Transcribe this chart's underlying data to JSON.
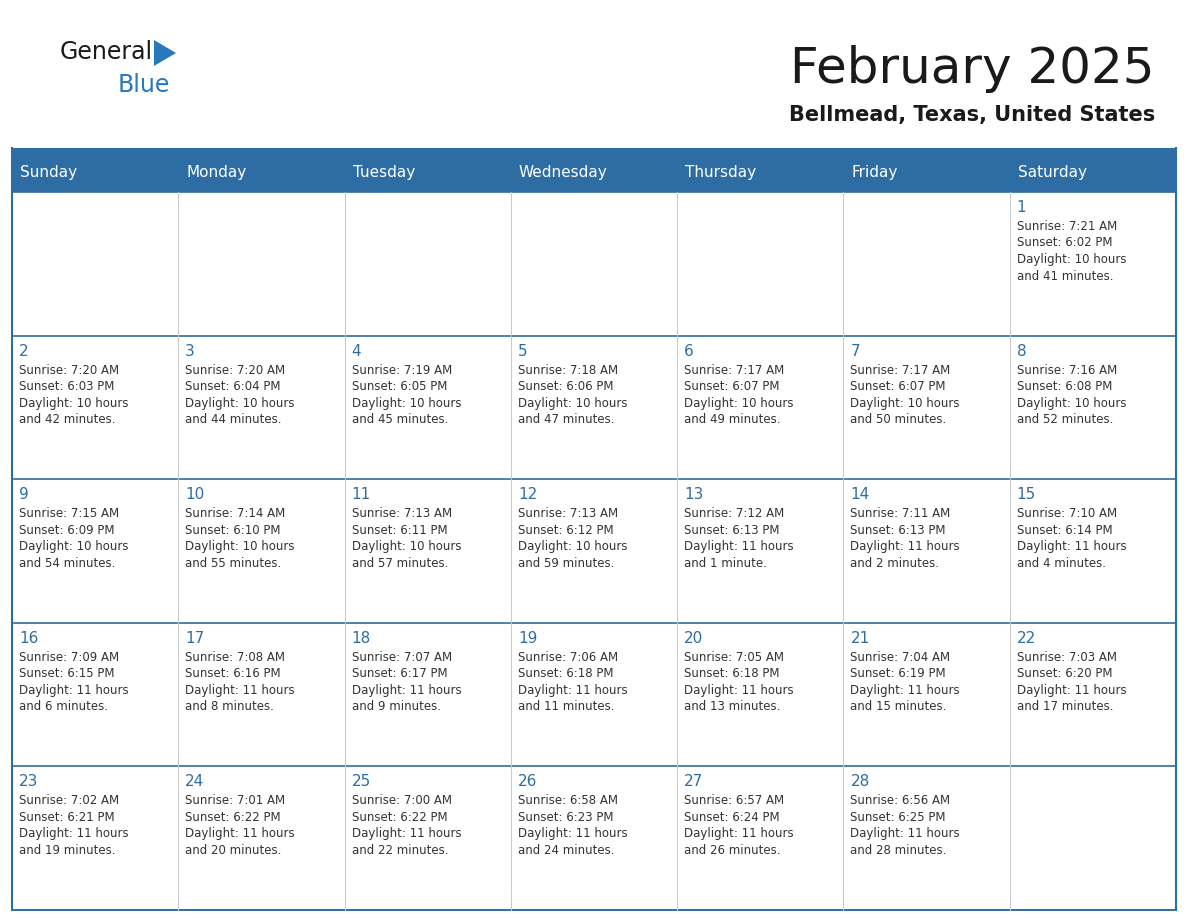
{
  "title": "February 2025",
  "subtitle": "Bellmead, Texas, United States",
  "days_of_week": [
    "Sunday",
    "Monday",
    "Tuesday",
    "Wednesday",
    "Thursday",
    "Friday",
    "Saturday"
  ],
  "header_bg": "#2E6DA4",
  "header_text": "#FFFFFF",
  "cell_bg": "#FFFFFF",
  "day_num_color": "#2E6DA4",
  "cell_text_color": "#333333",
  "border_color": "#2E6DA4",
  "sep_color": "#2E6DA4",
  "logo_general_color": "#1a1a1a",
  "logo_blue_color": "#2878BE",
  "calendar_data": [
    [
      {
        "day": null,
        "info": ""
      },
      {
        "day": null,
        "info": ""
      },
      {
        "day": null,
        "info": ""
      },
      {
        "day": null,
        "info": ""
      },
      {
        "day": null,
        "info": ""
      },
      {
        "day": null,
        "info": ""
      },
      {
        "day": 1,
        "info": "Sunrise: 7:21 AM\nSunset: 6:02 PM\nDaylight: 10 hours\nand 41 minutes."
      }
    ],
    [
      {
        "day": 2,
        "info": "Sunrise: 7:20 AM\nSunset: 6:03 PM\nDaylight: 10 hours\nand 42 minutes."
      },
      {
        "day": 3,
        "info": "Sunrise: 7:20 AM\nSunset: 6:04 PM\nDaylight: 10 hours\nand 44 minutes."
      },
      {
        "day": 4,
        "info": "Sunrise: 7:19 AM\nSunset: 6:05 PM\nDaylight: 10 hours\nand 45 minutes."
      },
      {
        "day": 5,
        "info": "Sunrise: 7:18 AM\nSunset: 6:06 PM\nDaylight: 10 hours\nand 47 minutes."
      },
      {
        "day": 6,
        "info": "Sunrise: 7:17 AM\nSunset: 6:07 PM\nDaylight: 10 hours\nand 49 minutes."
      },
      {
        "day": 7,
        "info": "Sunrise: 7:17 AM\nSunset: 6:07 PM\nDaylight: 10 hours\nand 50 minutes."
      },
      {
        "day": 8,
        "info": "Sunrise: 7:16 AM\nSunset: 6:08 PM\nDaylight: 10 hours\nand 52 minutes."
      }
    ],
    [
      {
        "day": 9,
        "info": "Sunrise: 7:15 AM\nSunset: 6:09 PM\nDaylight: 10 hours\nand 54 minutes."
      },
      {
        "day": 10,
        "info": "Sunrise: 7:14 AM\nSunset: 6:10 PM\nDaylight: 10 hours\nand 55 minutes."
      },
      {
        "day": 11,
        "info": "Sunrise: 7:13 AM\nSunset: 6:11 PM\nDaylight: 10 hours\nand 57 minutes."
      },
      {
        "day": 12,
        "info": "Sunrise: 7:13 AM\nSunset: 6:12 PM\nDaylight: 10 hours\nand 59 minutes."
      },
      {
        "day": 13,
        "info": "Sunrise: 7:12 AM\nSunset: 6:13 PM\nDaylight: 11 hours\nand 1 minute."
      },
      {
        "day": 14,
        "info": "Sunrise: 7:11 AM\nSunset: 6:13 PM\nDaylight: 11 hours\nand 2 minutes."
      },
      {
        "day": 15,
        "info": "Sunrise: 7:10 AM\nSunset: 6:14 PM\nDaylight: 11 hours\nand 4 minutes."
      }
    ],
    [
      {
        "day": 16,
        "info": "Sunrise: 7:09 AM\nSunset: 6:15 PM\nDaylight: 11 hours\nand 6 minutes."
      },
      {
        "day": 17,
        "info": "Sunrise: 7:08 AM\nSunset: 6:16 PM\nDaylight: 11 hours\nand 8 minutes."
      },
      {
        "day": 18,
        "info": "Sunrise: 7:07 AM\nSunset: 6:17 PM\nDaylight: 11 hours\nand 9 minutes."
      },
      {
        "day": 19,
        "info": "Sunrise: 7:06 AM\nSunset: 6:18 PM\nDaylight: 11 hours\nand 11 minutes."
      },
      {
        "day": 20,
        "info": "Sunrise: 7:05 AM\nSunset: 6:18 PM\nDaylight: 11 hours\nand 13 minutes."
      },
      {
        "day": 21,
        "info": "Sunrise: 7:04 AM\nSunset: 6:19 PM\nDaylight: 11 hours\nand 15 minutes."
      },
      {
        "day": 22,
        "info": "Sunrise: 7:03 AM\nSunset: 6:20 PM\nDaylight: 11 hours\nand 17 minutes."
      }
    ],
    [
      {
        "day": 23,
        "info": "Sunrise: 7:02 AM\nSunset: 6:21 PM\nDaylight: 11 hours\nand 19 minutes."
      },
      {
        "day": 24,
        "info": "Sunrise: 7:01 AM\nSunset: 6:22 PM\nDaylight: 11 hours\nand 20 minutes."
      },
      {
        "day": 25,
        "info": "Sunrise: 7:00 AM\nSunset: 6:22 PM\nDaylight: 11 hours\nand 22 minutes."
      },
      {
        "day": 26,
        "info": "Sunrise: 6:58 AM\nSunset: 6:23 PM\nDaylight: 11 hours\nand 24 minutes."
      },
      {
        "day": 27,
        "info": "Sunrise: 6:57 AM\nSunset: 6:24 PM\nDaylight: 11 hours\nand 26 minutes."
      },
      {
        "day": 28,
        "info": "Sunrise: 6:56 AM\nSunset: 6:25 PM\nDaylight: 11 hours\nand 28 minutes."
      },
      {
        "day": null,
        "info": ""
      }
    ]
  ]
}
